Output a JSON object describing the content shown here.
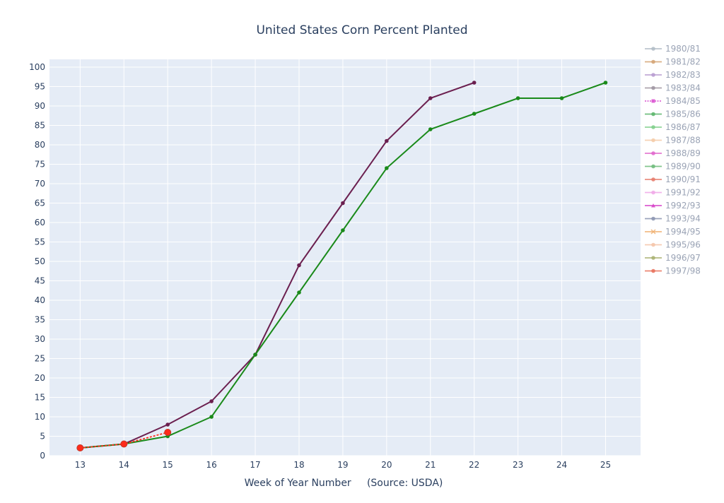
{
  "chart_data": {
    "type": "line",
    "title": "United States Corn Percent Planted",
    "xlabel": "Week of Year Number     (Source: USDA)",
    "ylabel": "",
    "xlim": [
      12.3,
      25.8
    ],
    "ylim": [
      0,
      102
    ],
    "x_ticks": [
      13,
      14,
      15,
      16,
      17,
      18,
      19,
      20,
      21,
      22,
      23,
      24,
      25
    ],
    "y_ticks": [
      0,
      5,
      10,
      15,
      20,
      25,
      30,
      35,
      40,
      45,
      50,
      55,
      60,
      65,
      70,
      75,
      80,
      85,
      90,
      95,
      100
    ],
    "grid": true,
    "legend_position": "right",
    "plot_bg": "#e5ecf6",
    "series": [
      {
        "name": "1980/81",
        "color": "#b0bcc6",
        "marker": "circle",
        "x": [],
        "y": []
      },
      {
        "name": "1981/82",
        "color": "#d4a373",
        "marker": "circle",
        "x": [],
        "y": []
      },
      {
        "name": "1982/83",
        "color": "#b79bd0",
        "marker": "circle",
        "x": [],
        "y": []
      },
      {
        "name": "1983/84",
        "color": "#9e94a0",
        "marker": "circle",
        "x": [],
        "y": []
      },
      {
        "name": "1984/85",
        "color": "#d94fd0",
        "marker": "square",
        "dashed": true,
        "x": [],
        "y": []
      },
      {
        "name": "1985/86",
        "color": "#5ab56a",
        "marker": "circle",
        "x": [],
        "y": []
      },
      {
        "name": "1986/87",
        "color": "#7fcf8a",
        "marker": "circle",
        "x": [],
        "y": []
      },
      {
        "name": "1987/88",
        "color": "#f5cba7",
        "marker": "circle",
        "x": [],
        "y": []
      },
      {
        "name": "1988/89",
        "color": "#e066cc",
        "marker": "circle",
        "x": [],
        "y": []
      },
      {
        "name": "1989/90",
        "color": "#6dbb7a",
        "marker": "circle",
        "x": [],
        "y": []
      },
      {
        "name": "1990/91",
        "color": "#e67a6a",
        "marker": "circle",
        "x": [],
        "y": []
      },
      {
        "name": "1991/92",
        "color": "#f0a8e8",
        "marker": "circle",
        "x": [],
        "y": []
      },
      {
        "name": "1992/93",
        "color": "#d640c8",
        "marker": "triangle",
        "x": [],
        "y": []
      },
      {
        "name": "1993/94",
        "color": "#8a94b0",
        "marker": "circle",
        "x": [],
        "y": []
      },
      {
        "name": "1994/95",
        "color": "#f0b070",
        "marker": "cross",
        "x": [],
        "y": []
      },
      {
        "name": "1995/96",
        "color": "#f5c4a8",
        "marker": "circle",
        "x": [],
        "y": []
      },
      {
        "name": "1996/97",
        "color": "#a8b070",
        "marker": "circle",
        "x": [],
        "y": []
      },
      {
        "name": "1997/98",
        "color": "#e8705a",
        "marker": "circle",
        "x": [],
        "y": []
      }
    ],
    "plotted_series": [
      {
        "color": "#6b1f4f",
        "x": [
          13,
          14,
          15,
          16,
          17,
          18,
          19,
          20,
          21,
          22
        ],
        "y": [
          2,
          3,
          8,
          14,
          26,
          49,
          65,
          81,
          92,
          96
        ]
      },
      {
        "color": "#1a8a1a",
        "x": [
          13,
          14,
          15,
          16,
          17,
          18,
          19,
          20,
          21,
          22,
          23,
          24,
          25
        ],
        "y": [
          2,
          3,
          5,
          10,
          26,
          42,
          58,
          74,
          84,
          88,
          92,
          92,
          96
        ]
      },
      {
        "color": "#ff2a1a",
        "dashed": true,
        "big_markers": true,
        "x": [
          13,
          14,
          15
        ],
        "y": [
          2,
          3,
          6
        ]
      }
    ]
  }
}
